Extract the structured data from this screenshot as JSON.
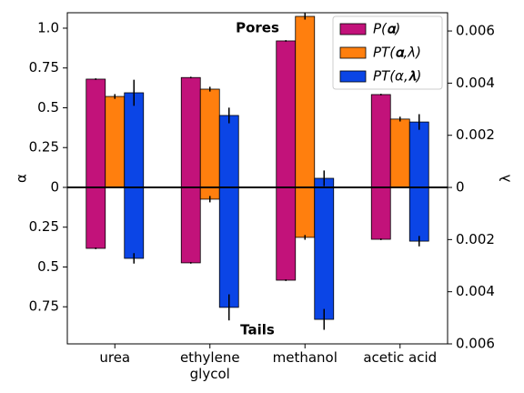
{
  "chart_data": {
    "type": "bar",
    "ylabel": "α",
    "y2label": "λ",
    "annotations": [
      "Pores",
      "Tails"
    ],
    "categories": [
      "urea",
      "ethylene glycol",
      "methanol",
      "acetic acid"
    ],
    "series": [
      {
        "name": "P(𝛂)",
        "color": "#c2127a",
        "axis": "y",
        "values": [
          0.68,
          0.69,
          0.92,
          0.583
        ],
        "errors": [
          0.005,
          0.005,
          0.005,
          0.005
        ],
        "tail_values": [
          -0.383,
          -0.474,
          -0.583,
          -0.326
        ],
        "tail_errors": [
          0.005,
          0.005,
          0.005,
          0.005
        ]
      },
      {
        "name": "PT(𝛂,λ)",
        "color": "#ff7f0e",
        "axis": "y",
        "values": [
          0.571,
          0.617,
          1.074,
          0.429
        ],
        "errors": [
          0.015,
          0.015,
          0.02,
          0.015
        ],
        "tail_values": [
          0,
          -0.074,
          -0.314,
          0
        ],
        "tail_errors": [
          0,
          0.02,
          0.015,
          0
        ]
      },
      {
        "name": "PT(α,𝛌)",
        "color": "#0b45e6",
        "axis": "y2",
        "values": [
          0.00363,
          0.00276,
          0.00035,
          0.00251
        ],
        "errors": [
          0.0005,
          0.0003,
          0.0003,
          0.0003
        ],
        "tail_values": [
          -0.00272,
          -0.0046,
          -0.00506,
          -0.00206
        ],
        "tail_errors": [
          0.0002,
          0.0005,
          0.0004,
          0.0002
        ]
      }
    ],
    "ylim": [
      -0.983,
      1.097
    ],
    "yticks": [
      {
        "value": 1,
        "label": "1.0"
      },
      0.75,
      0.5,
      0.25,
      0,
      {
        "value": -0.25,
        "label": "0.25"
      },
      {
        "value": -0.5,
        "label": "0.5"
      },
      {
        "value": -0.75,
        "label": "0.75"
      }
    ],
    "y2lim": [
      -0.006,
      0.0067
    ],
    "y2ticks": [
      0.006,
      0.004,
      0.002,
      0,
      {
        "value": -0.002,
        "label": "0.002"
      },
      {
        "value": -0.004,
        "label": "0.004"
      },
      {
        "value": -0.006,
        "label": "0.006"
      }
    ],
    "legend": "upper right",
    "grid": false
  }
}
